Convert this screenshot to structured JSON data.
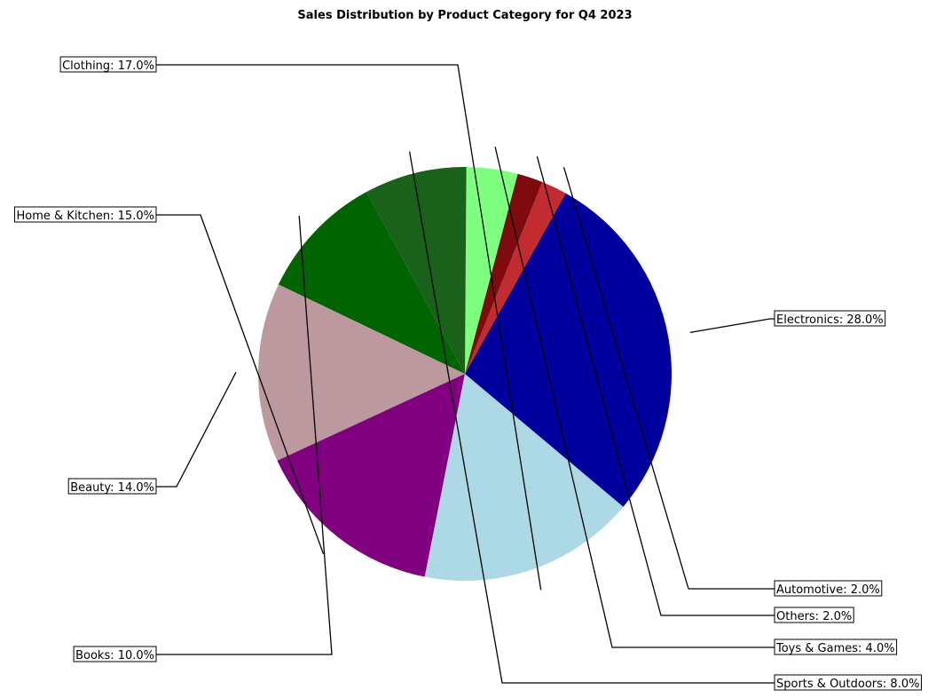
{
  "chart_data": {
    "type": "pie",
    "title": "Sales Distribution by Product Category for Q4 2023",
    "slices": [
      {
        "name": "Electronics",
        "value": 28.0,
        "label": "Electronics: 28.0%",
        "color": "#00009f"
      },
      {
        "name": "Automotive",
        "value": 2.0,
        "label": "Automotive: 2.0%",
        "color": "#c22b30"
      },
      {
        "name": "Others",
        "value": 2.0,
        "label": "Others: 2.0%",
        "color": "#7f0b0e"
      },
      {
        "name": "Toys & Games",
        "value": 4.0,
        "label": "Toys & Games: 4.0%",
        "color": "#7fff7f"
      },
      {
        "name": "Sports & Outdoors",
        "value": 8.0,
        "label": "Sports & Outdoors: 8.0%",
        "color": "#1a6119"
      },
      {
        "name": "Books",
        "value": 10.0,
        "label": "Books: 10.0%",
        "color": "#006400"
      },
      {
        "name": "Beauty",
        "value": 14.0,
        "label": "Beauty: 14.0%",
        "color": "#bc999e"
      },
      {
        "name": "Home & Kitchen",
        "value": 15.0,
        "label": "Home & Kitchen: 15.0%",
        "color": "#800080"
      },
      {
        "name": "Clothing",
        "value": 17.0,
        "label": "Clothing: 17.0%",
        "color": "#add8e6"
      }
    ]
  }
}
